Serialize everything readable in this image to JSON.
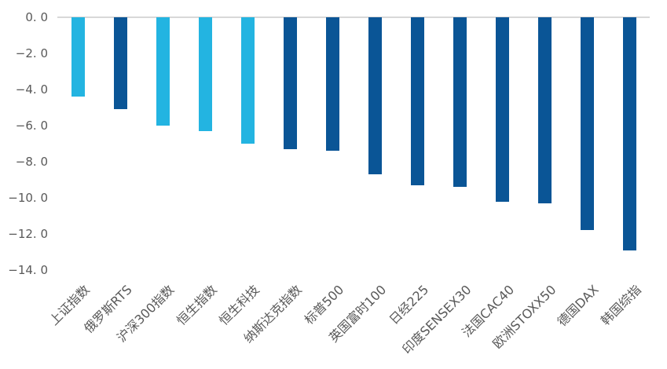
{
  "chart": {
    "background_color": "#FFFFFF",
    "gridline_color": "#D8D8D8",
    "axis_text_color": "#595959"
  },
  "chart_data": {
    "type": "bar",
    "orientation": "vertical",
    "title": "",
    "xlabel": "",
    "ylabel": "",
    "ylim": [
      -14,
      0
    ],
    "y_tick_step": 2,
    "grid": "single horizontal gridline at zero only",
    "legend_position": "none",
    "categories": [
      "上证指数",
      "俄罗斯RTS",
      "沪深300指数",
      "恒生指数",
      "恒生科技",
      "纳斯达克指数",
      "标普500",
      "英国富时100",
      "日经225",
      "印度SENSEX30",
      "法国CAC40",
      "欧洲STOXX50",
      "德国DAX",
      "韩国综指"
    ],
    "values": [
      -4.4,
      -5.1,
      -6.0,
      -6.3,
      -7.0,
      -7.3,
      -7.4,
      -8.7,
      -9.3,
      -9.4,
      -10.2,
      -10.3,
      -11.8,
      -12.9
    ],
    "bar_color_roles": [
      "highlight",
      "base",
      "highlight",
      "highlight",
      "highlight",
      "base",
      "base",
      "base",
      "base",
      "base",
      "base",
      "base",
      "base",
      "base"
    ],
    "palette": {
      "highlight": "#23B4E1",
      "base": "#0A5596"
    },
    "y_ticks": [
      {
        "value": 0,
        "label": "0. 0"
      },
      {
        "value": -2,
        "label": "−2. 0"
      },
      {
        "value": -4,
        "label": "−4. 0"
      },
      {
        "value": -6,
        "label": "−6. 0"
      },
      {
        "value": -8,
        "label": "−8. 0"
      },
      {
        "value": -10,
        "label": "−10. 0"
      },
      {
        "value": -12,
        "label": "−12. 0"
      },
      {
        "value": -14,
        "label": "−14. 0"
      }
    ]
  }
}
